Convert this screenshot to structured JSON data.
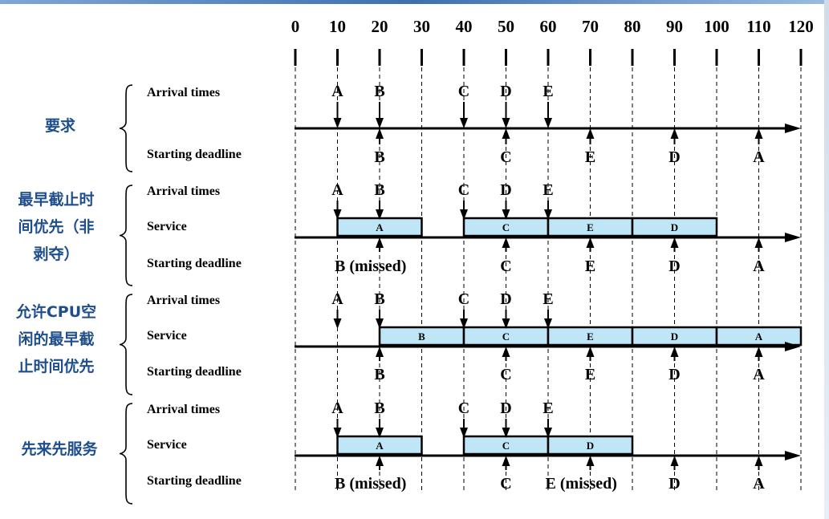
{
  "axis": {
    "ticks": [
      "0",
      "10",
      "20",
      "30",
      "40",
      "50",
      "60",
      "70",
      "80",
      "90",
      "100",
      "110",
      "120"
    ]
  },
  "requirements": {
    "group_label": "要求",
    "arrival_label": "Arrival times",
    "deadline_label": "Starting deadline",
    "arrivals": [
      {
        "label": "A",
        "t": 10
      },
      {
        "label": "B",
        "t": 20
      },
      {
        "label": "C",
        "t": 40
      },
      {
        "label": "D",
        "t": 50
      },
      {
        "label": "E",
        "t": 60
      }
    ],
    "deadlines": [
      {
        "label": "B",
        "t": 20
      },
      {
        "label": "C",
        "t": 50
      },
      {
        "label": "E",
        "t": 70
      },
      {
        "label": "D",
        "t": 90
      },
      {
        "label": "A",
        "t": 110
      }
    ]
  },
  "schedules": [
    {
      "group_label": "最早截止时间优先（非剥夺）",
      "group_lines": [
        "最早截止时",
        "间优先（非",
        "剥夺）"
      ],
      "arrival_label": "Arrival times",
      "service_label": "Service",
      "deadline_label": "Starting deadline",
      "arrivals": [
        {
          "label": "A",
          "t": 10
        },
        {
          "label": "B",
          "t": 20
        },
        {
          "label": "C",
          "t": 40
        },
        {
          "label": "D",
          "t": 50
        },
        {
          "label": "E",
          "t": 60
        }
      ],
      "service": [
        {
          "label": "A",
          "start": 10,
          "end": 30
        },
        {
          "label": "C",
          "start": 40,
          "end": 60
        },
        {
          "label": "E",
          "start": 60,
          "end": 80
        },
        {
          "label": "D",
          "start": 80,
          "end": 100
        }
      ],
      "deadlines": [
        {
          "label": "B (missed)",
          "t": 20
        },
        {
          "label": "C",
          "t": 50
        },
        {
          "label": "E",
          "t": 70
        },
        {
          "label": "D",
          "t": 90
        },
        {
          "label": "A",
          "t": 110
        }
      ]
    },
    {
      "group_label": "允许CPU空闲的最早截止时间优先",
      "group_lines": [
        "允许CPU空",
        "闲的最早截",
        "止时间优先"
      ],
      "arrival_label": "Arrival times",
      "service_label": "Service",
      "deadline_label": "Starting deadline",
      "arrivals": [
        {
          "label": "A",
          "t": 10
        },
        {
          "label": "B",
          "t": 20
        },
        {
          "label": "C",
          "t": 40
        },
        {
          "label": "D",
          "t": 50
        },
        {
          "label": "E",
          "t": 60
        }
      ],
      "service": [
        {
          "label": "B",
          "start": 20,
          "end": 40
        },
        {
          "label": "C",
          "start": 40,
          "end": 60
        },
        {
          "label": "E",
          "start": 60,
          "end": 80
        },
        {
          "label": "D",
          "start": 80,
          "end": 100
        },
        {
          "label": "A",
          "start": 100,
          "end": 120
        }
      ],
      "deadlines": [
        {
          "label": "B",
          "t": 20
        },
        {
          "label": "C",
          "t": 50
        },
        {
          "label": "E",
          "t": 70
        },
        {
          "label": "D",
          "t": 90
        },
        {
          "label": "A",
          "t": 110
        }
      ]
    },
    {
      "group_label": "先来先服务",
      "group_lines": [
        "先来先服务"
      ],
      "arrival_label": "Arrival times",
      "service_label": "Service",
      "deadline_label": "Starting deadline",
      "arrivals": [
        {
          "label": "A",
          "t": 10
        },
        {
          "label": "B",
          "t": 20
        },
        {
          "label": "C",
          "t": 40
        },
        {
          "label": "D",
          "t": 50
        },
        {
          "label": "E",
          "t": 60
        }
      ],
      "service": [
        {
          "label": "A",
          "start": 10,
          "end": 30
        },
        {
          "label": "C",
          "start": 40,
          "end": 60
        },
        {
          "label": "D",
          "start": 60,
          "end": 80
        }
      ],
      "deadlines": [
        {
          "label": "B (missed)",
          "t": 20
        },
        {
          "label": "C",
          "t": 50
        },
        {
          "label": "E (missed)",
          "t": 70
        },
        {
          "label": "D",
          "t": 90
        },
        {
          "label": "A",
          "t": 110
        }
      ]
    }
  ],
  "colors": {
    "service_fill": "#bfe6f7",
    "group_text": "#1f4e8c",
    "line": "#000000"
  }
}
